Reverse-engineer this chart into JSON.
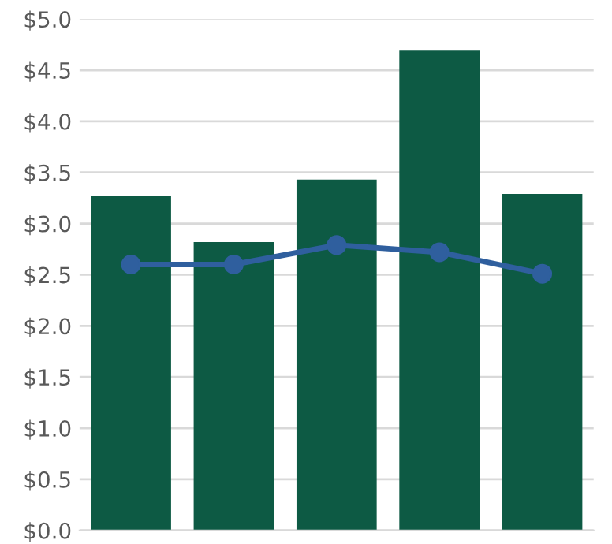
{
  "chart_data": {
    "type": "bar",
    "categories": [
      null,
      null,
      null,
      null,
      null
    ],
    "series": [
      {
        "color": "#0d5a44",
        "values": [
          3.27,
          2.82,
          3.43,
          4.69,
          3.29
        ]
      },
      {
        "type": "line",
        "color": "#2f5f9e",
        "values": [
          2.6,
          2.6,
          2.79,
          2.72,
          2.51
        ],
        "marker": "circle"
      }
    ],
    "ylim": [
      0,
      5
    ],
    "yticks": [
      {
        "value": 0,
        "label": "$0.0"
      },
      {
        "value": 0.5,
        "label": "$0.5"
      },
      {
        "value": 1,
        "label": "$1.0"
      },
      {
        "value": 1.5,
        "label": "$1.5"
      },
      {
        "value": 2,
        "label": "$2.0"
      },
      {
        "value": 2.5,
        "label": "$2.5"
      },
      {
        "value": 3,
        "label": "$3.0"
      },
      {
        "value": 3.5,
        "label": "$3.5"
      },
      {
        "value": 4,
        "label": "$4.0"
      },
      {
        "value": 4.5,
        "label": "$4.5"
      },
      {
        "value": 5,
        "label": "$5.0"
      }
    ],
    "grid": "y"
  }
}
